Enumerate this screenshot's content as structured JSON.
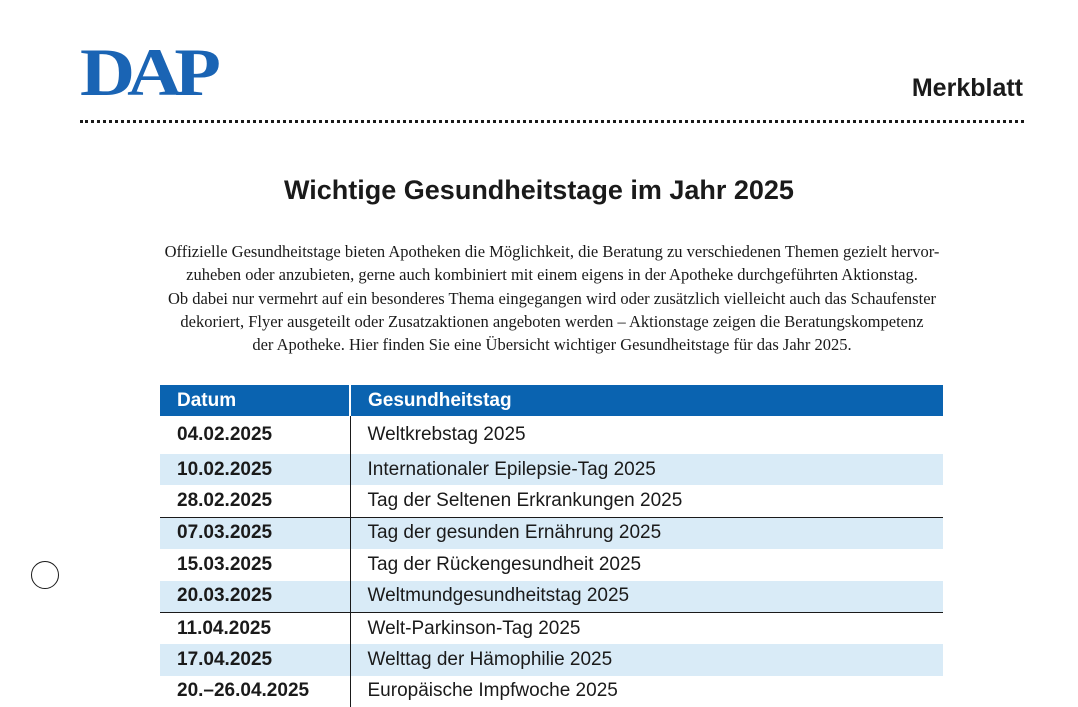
{
  "header": {
    "logo_text": "DAP",
    "doc_type": "Merkblatt"
  },
  "title": "Wichtige Gesundheitstage im Jahr 2025",
  "intro_lines": [
    "Offizielle Gesundheitstage bieten Apotheken die Möglichkeit, die Beratung zu verschiedenen Themen gezielt hervor-",
    "zuheben oder anzubieten, gerne auch kombiniert mit einem eigens in der Apotheke durchgeführten Aktionstag.",
    "Ob dabei nur vermehrt auf ein besonderes Thema eingegangen wird oder zusätzlich vielleicht auch das Schaufenster",
    "dekoriert, Flyer ausgeteilt oder Zusatzaktionen angeboten werden – Aktionstage zeigen die Beratungskompetenz",
    "der Apotheke. Hier finden Sie eine Übersicht wichtiger Gesundheitstage für das Jahr 2025."
  ],
  "table": {
    "columns": [
      "Datum",
      "Gesundheitstag"
    ],
    "rows": [
      {
        "date": "04.02.2025",
        "name": "Weltkrebstag 2025"
      },
      {
        "date": "10.02.2025",
        "name": "Internationaler Epilepsie-Tag 2025"
      },
      {
        "date": "28.02.2025",
        "name": "Tag der Seltenen Erkrankungen 2025"
      },
      {
        "date": "07.03.2025",
        "name": "Tag der gesunden Ernährung 2025"
      },
      {
        "date": "15.03.2025",
        "name": "Tag der Rückengesundheit 2025"
      },
      {
        "date": "20.03.2025",
        "name": "Weltmundgesundheitstag 2025"
      },
      {
        "date": "11.04.2025",
        "name": "Welt-Parkinson-Tag 2025"
      },
      {
        "date": "17.04.2025",
        "name": "Welttag der Hämophilie 2025"
      },
      {
        "date": "20.–26.04.2025",
        "name": "Europäische Impfwoche 2025"
      }
    ]
  },
  "colors": {
    "brand_blue": "#1a64b4",
    "header_blue": "#0a63b0",
    "row_stripe": "#d9ebf7"
  },
  "icons": {
    "punch_hole": "punch-hole-icon"
  }
}
